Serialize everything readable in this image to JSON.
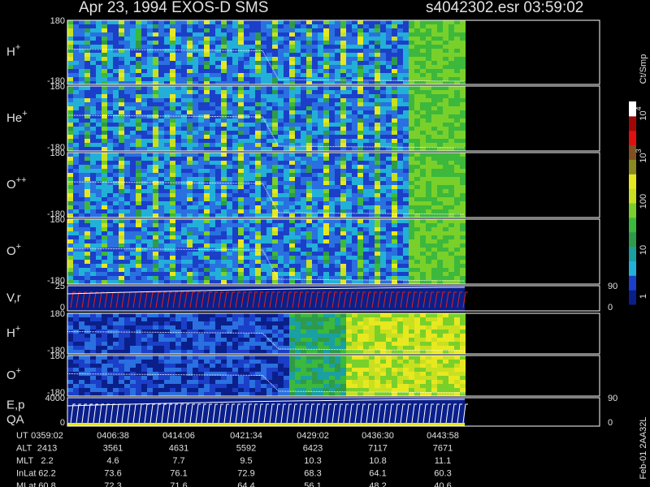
{
  "header": {
    "title": "Apr 23, 1994   EXOS-D SMS",
    "file": "s4042302.esr  03:59:02"
  },
  "panels": [
    {
      "label": "H",
      "sup": "+",
      "left_ticks": [
        "180",
        "-180"
      ],
      "right_ticks": []
    },
    {
      "label": "He",
      "sup": "+",
      "left_ticks": [
        "180",
        "-180"
      ],
      "right_ticks": []
    },
    {
      "label": "O",
      "sup": "++",
      "left_ticks": [
        "180",
        "-180"
      ],
      "right_ticks": []
    },
    {
      "label": "O",
      "sup": "+",
      "left_ticks": [
        "180",
        "-180"
      ],
      "right_ticks": []
    },
    {
      "label": "V,r",
      "left_ticks": [
        "25",
        "0"
      ],
      "right_ticks": [
        "90",
        "0"
      ]
    },
    {
      "label": "H",
      "sup": "+",
      "left_ticks": [
        "180",
        "-180"
      ],
      "right_ticks": []
    },
    {
      "label": "O",
      "sup": "+",
      "left_ticks": [
        "180",
        "-180"
      ],
      "right_ticks": []
    },
    {
      "label": "E,p",
      "label2": "QA",
      "left_ticks": [
        "4000",
        "0"
      ],
      "right_ticks": [
        "90",
        "0"
      ]
    }
  ],
  "colorbar": {
    "unit": "Ct/Smp",
    "labels": [
      {
        "base": "10",
        "exp": "4"
      },
      {
        "base": "10",
        "exp": "3"
      },
      {
        "base": "100"
      },
      {
        "base": "10"
      },
      {
        "base": "1"
      }
    ]
  },
  "table": {
    "rows": [
      [
        "UT",
        "0359:02",
        "0406:38",
        "0414:06",
        "0421:34",
        "0429:02",
        "0436:30",
        "0443:58"
      ],
      [
        "ALT",
        "2413",
        "3561",
        "4631",
        "5592",
        "6423",
        "7117",
        "7671"
      ],
      [
        "MLT",
        "2.2",
        "4.6",
        "7.7",
        "9.5",
        "10.3",
        "10.8",
        "11.1"
      ],
      [
        "InLat",
        "62.2",
        "73.6",
        "76.1",
        "72.9",
        "68.3",
        "64.1",
        "60.3"
      ],
      [
        "MLat",
        "60.8",
        "72.3",
        "71.6",
        "64.4",
        "56.1",
        "48.2",
        "40.6"
      ]
    ]
  },
  "footer": "Feb-01 2AA32L"
}
